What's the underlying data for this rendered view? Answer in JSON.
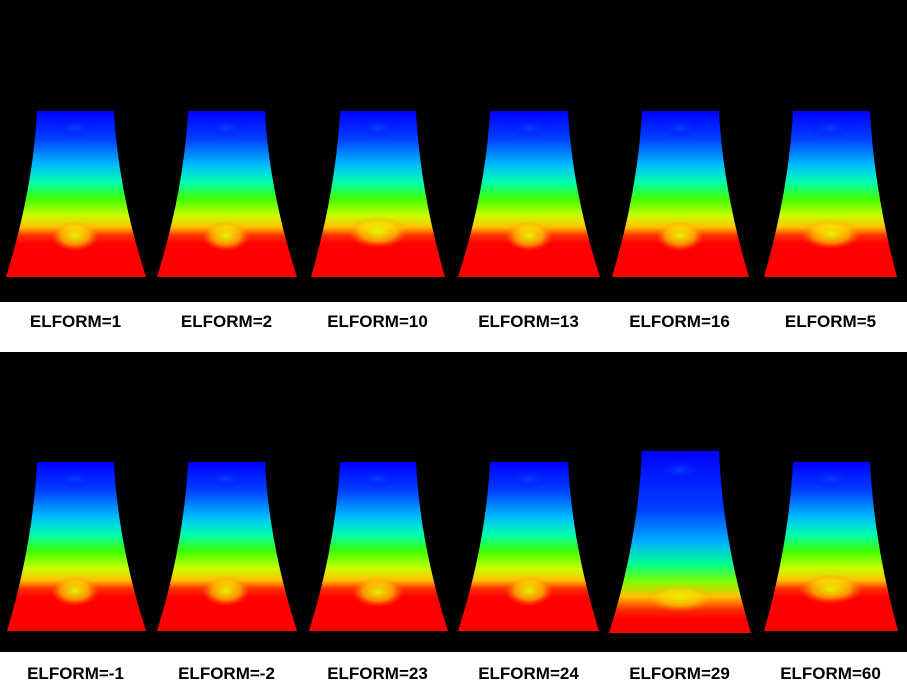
{
  "rows": [
    {
      "labels": [
        "ELFORM=1",
        "ELFORM=2",
        "ELFORM=10",
        "ELFORM=13",
        "ELFORM=16",
        "ELFORM=5"
      ]
    },
    {
      "labels": [
        "ELFORM=-1",
        "ELFORM=-2",
        "ELFORM=23",
        "ELFORM=24",
        "ELFORM=29",
        "ELFORM=60"
      ]
    }
  ],
  "colors": {
    "background": "#000000",
    "label_band": "#ffffff",
    "label_text": "#000000",
    "fringe": [
      "#0000ff",
      "#0090ff",
      "#00e0ff",
      "#00ff80",
      "#60ff00",
      "#c8ff00",
      "#ffe000",
      "#ff8000",
      "#ff0000"
    ]
  }
}
